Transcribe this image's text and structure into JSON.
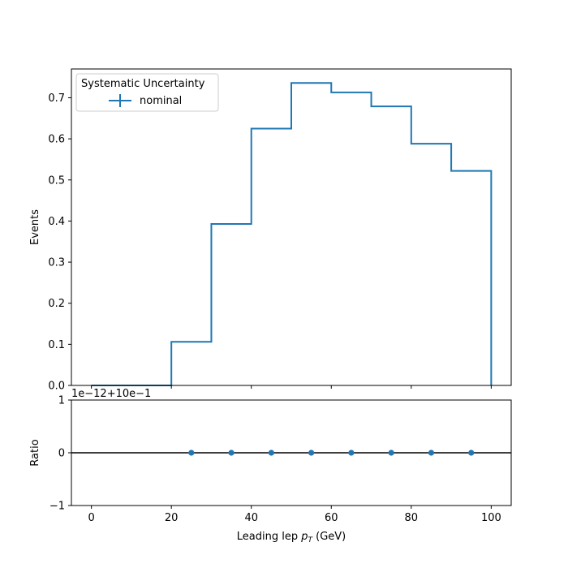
{
  "chart_data": [
    {
      "type": "step",
      "xlabel_prefix": "Leading lep ",
      "xlabel_var": "p",
      "xlabel_sub": "T",
      "xlabel_suffix": " (GeV)",
      "ylabel": "Events",
      "xlim": [
        -5,
        105
      ],
      "ylim": [
        0,
        0.77
      ],
      "x_ticks": [
        0,
        20,
        40,
        60,
        80,
        100
      ],
      "y_ticks": [
        0.0,
        0.1,
        0.2,
        0.3,
        0.4,
        0.5,
        0.6,
        0.7
      ],
      "y_tick_labels": [
        "0.0",
        "0.1",
        "0.2",
        "0.3",
        "0.4",
        "0.5",
        "0.6",
        "0.7"
      ],
      "bin_edges": [
        0,
        10,
        20,
        30,
        40,
        50,
        60,
        70,
        80,
        90,
        100
      ],
      "series": [
        {
          "name": "nominal",
          "color": "#1f77b4",
          "values": [
            0.0,
            0.0,
            0.106,
            0.393,
            0.625,
            0.736,
            0.713,
            0.679,
            0.588,
            0.522
          ]
        }
      ],
      "legend": {
        "title": "Systematic Uncertainty",
        "location": "top-left"
      }
    },
    {
      "type": "scatter",
      "ylabel": "Ratio",
      "offset_label": "1e−12+10e−1",
      "xlim": [
        -5,
        105
      ],
      "ylim": [
        -1,
        1
      ],
      "y_ticks": [
        -1,
        0,
        1
      ],
      "y_tick_labels": [
        "−1",
        "0",
        "1"
      ],
      "reference_line": 0,
      "series": [
        {
          "name": "nominal",
          "color": "#1f77b4",
          "x": [
            25,
            35,
            45,
            55,
            65,
            75,
            85,
            95
          ],
          "y": [
            0,
            0,
            0,
            0,
            0,
            0,
            0,
            0
          ]
        }
      ]
    }
  ]
}
